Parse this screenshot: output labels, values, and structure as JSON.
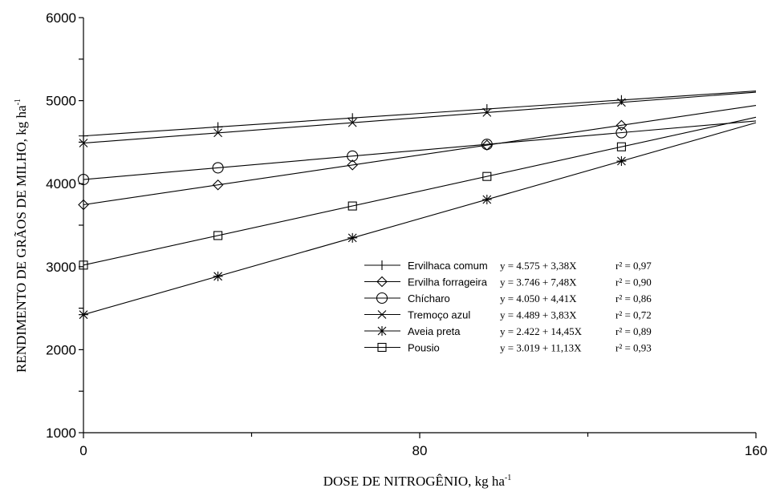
{
  "chart_data": {
    "type": "line",
    "xlabel": "DOSE DE NITROGÊNIO, kg ha",
    "xlabel_sup": "-1",
    "ylabel": "RENDIMENTO DE GRÃOS DE MILHO, kg ha",
    "ylabel_sup": "-1",
    "xlim": [
      0,
      160
    ],
    "ylim": [
      1000,
      6000
    ],
    "x_ticks": [
      0,
      80,
      160
    ],
    "x_tick_labels": [
      "0",
      "80",
      "160"
    ],
    "y_ticks": [
      1000,
      2000,
      3000,
      4000,
      5000,
      6000
    ],
    "y_tick_labels": [
      "1000",
      "2000",
      "3000",
      "4000",
      "5000",
      "6000"
    ],
    "grid": false,
    "legend_position": "lower-right",
    "series": [
      {
        "name": "Ervilhaca comum",
        "marker": "plus",
        "equation": "y = 4.575 + 3,38X",
        "r2_label": "r² = 0,97",
        "intercept": 4575,
        "slope": 3.38,
        "x": [
          0,
          32,
          64,
          96,
          128
        ],
        "y": [
          4575,
          4683,
          4791,
          4900,
          5008
        ]
      },
      {
        "name": "Ervilha forrageira",
        "marker": "diamond",
        "equation": "y = 3.746 + 7,48X",
        "r2_label": "r² = 0,90",
        "intercept": 3746,
        "slope": 7.48,
        "x": [
          0,
          32,
          64,
          96,
          128
        ],
        "y": [
          3746,
          3985,
          4225,
          4464,
          4703
        ]
      },
      {
        "name": "Chícharo",
        "marker": "circle",
        "equation": "y = 4.050 + 4,41X",
        "r2_label": "r² = 0,86",
        "intercept": 4050,
        "slope": 4.41,
        "x": [
          0,
          32,
          64,
          96,
          128
        ],
        "y": [
          4050,
          4191,
          4332,
          4473,
          4614
        ]
      },
      {
        "name": "Tremoço azul",
        "marker": "x",
        "equation": "y = 4.489 + 3,83X",
        "r2_label": "r² = 0,72",
        "intercept": 4489,
        "slope": 3.83,
        "x": [
          0,
          32,
          64,
          96,
          128
        ],
        "y": [
          4489,
          4612,
          4734,
          4857,
          4979
        ]
      },
      {
        "name": "Aveia preta",
        "marker": "asterisk",
        "equation": "y = 2.422 + 14,45X",
        "r2_label": "r² = 0,89",
        "intercept": 2422,
        "slope": 14.45,
        "x": [
          0,
          32,
          64,
          96,
          128
        ],
        "y": [
          2422,
          2884,
          3347,
          3809,
          4272
        ]
      },
      {
        "name": "Pousio",
        "marker": "square",
        "equation": "y = 3.019 + 11,13X",
        "r2_label": "r² = 0,93",
        "intercept": 3019,
        "slope": 11.13,
        "x": [
          0,
          32,
          64,
          96,
          128
        ],
        "y": [
          3019,
          3375,
          3731,
          4087,
          4444
        ]
      }
    ]
  }
}
